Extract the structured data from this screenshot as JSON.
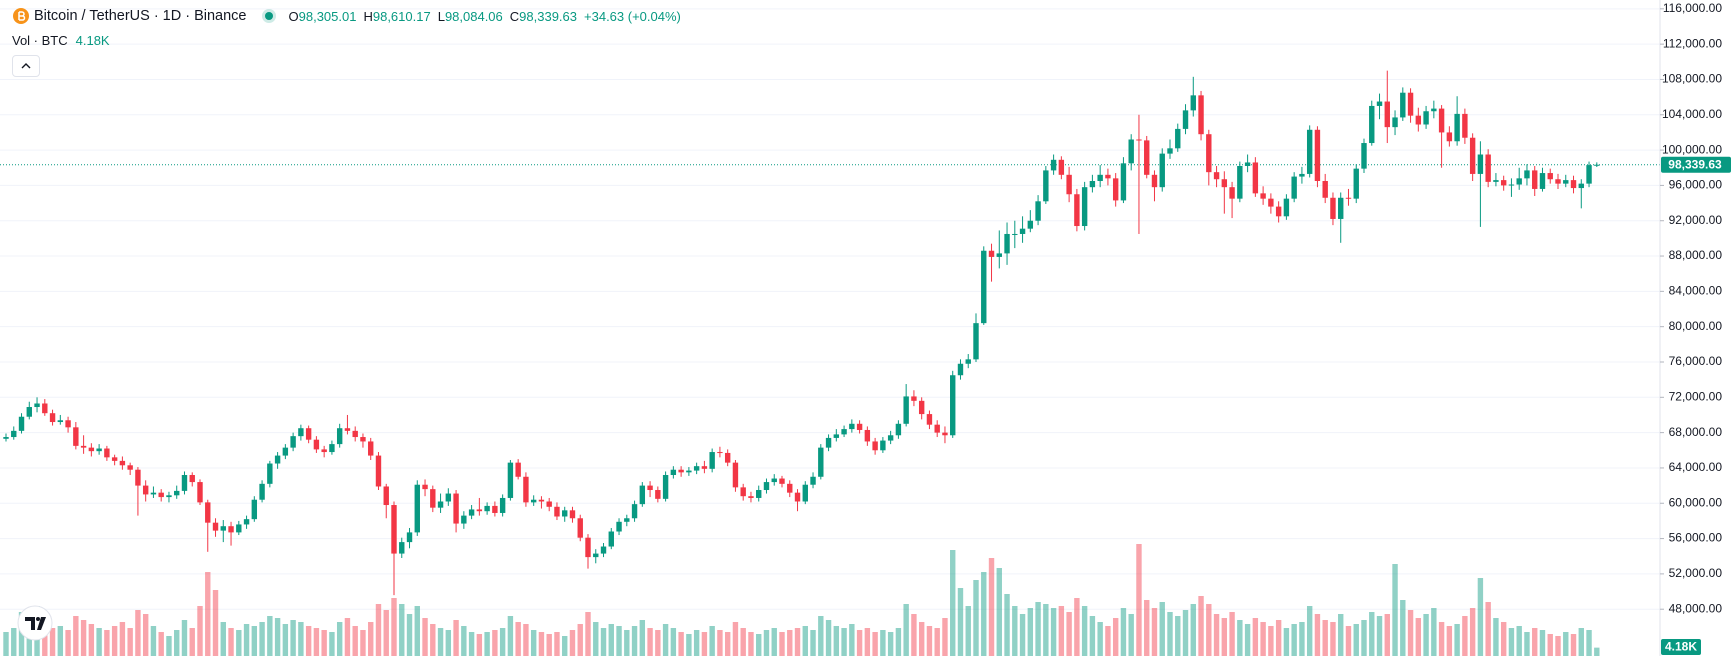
{
  "header": {
    "symbol": "Bitcoin / TetherUS · 1D · Binance",
    "ohlc": [
      {
        "label": "O",
        "value": "98,305.01"
      },
      {
        "label": "H",
        "value": "98,610.17"
      },
      {
        "label": "L",
        "value": "98,084.06"
      },
      {
        "label": "C",
        "value": "98,339.63"
      }
    ],
    "change": "+34.63 (+0.04%)",
    "volume_title": "Vol · BTC",
    "volume_value": "4.18K"
  },
  "chart_data": {
    "type": "candlestick",
    "ylim": [
      42700,
      117000
    ],
    "yticks": [
      {
        "value": 48000,
        "label": "48,000.00"
      },
      {
        "value": 52000,
        "label": "52,000.00"
      },
      {
        "value": 56000,
        "label": "56,000.00"
      },
      {
        "value": 60000,
        "label": "60,000.00"
      },
      {
        "value": 64000,
        "label": "64,000.00"
      },
      {
        "value": 68000,
        "label": "68,000.00"
      },
      {
        "value": 72000,
        "label": "72,000.00"
      },
      {
        "value": 76000,
        "label": "76,000.00"
      },
      {
        "value": 80000,
        "label": "80,000.00"
      },
      {
        "value": 84000,
        "label": "84,000.00"
      },
      {
        "value": 88000,
        "label": "88,000.00"
      },
      {
        "value": 92000,
        "label": "92,000.00"
      },
      {
        "value": 96000,
        "label": "96,000.00"
      },
      {
        "value": 100000,
        "label": "100,000.00"
      },
      {
        "value": 104000,
        "label": "104,000.00"
      },
      {
        "value": 108000,
        "label": "108,000.00"
      },
      {
        "value": 112000,
        "label": "112,000.00"
      },
      {
        "value": 116000,
        "label": "116,000.00"
      }
    ],
    "grid": true,
    "up_color": "#089981",
    "down_color": "#f23645",
    "series": {
      "open": [
        67300,
        67500,
        68200,
        69800,
        70900,
        71300,
        70200,
        69200,
        69400,
        68600,
        66500,
        66300,
        65900,
        66200,
        65200,
        64800,
        64300,
        63800,
        62000,
        61000,
        61200,
        60700,
        60900,
        61400,
        63200,
        62400,
        60100,
        57800,
        56900,
        57400,
        56700,
        57600,
        58200,
        60400,
        62200,
        64500,
        65400,
        66300,
        67600,
        68500,
        67200,
        66100,
        65800,
        66700,
        68500,
        68200,
        67500,
        67000,
        65400,
        61900,
        59800,
        54300,
        55600,
        56700,
        62100,
        61600,
        59500,
        60200,
        61100,
        57700,
        58600,
        59300,
        59100,
        59700,
        58900,
        60600,
        64600,
        63000,
        60100,
        60400,
        60200,
        59600,
        58500,
        59200,
        58300,
        56100,
        53900,
        54300,
        55100,
        56800,
        57900,
        58300,
        59900,
        62000,
        61500,
        60500,
        63200,
        63800,
        63500,
        63700,
        64200,
        63900,
        65800,
        65700,
        64600,
        61800,
        60800,
        60600,
        61500,
        62400,
        62800,
        62200,
        61200,
        60200,
        62100,
        63000,
        66300,
        67400,
        67800,
        68400,
        69000,
        68300,
        67000,
        66000,
        67100,
        67700,
        69000,
        72100,
        71600,
        70100,
        68900,
        68000,
        67700,
        74500,
        75800,
        76300,
        80400,
        88600,
        87900,
        88300,
        90500,
        90500,
        91100,
        92000,
        94200,
        97700,
        98900,
        97200,
        95000,
        91400,
        95800,
        96500,
        97200,
        96800,
        94300,
        98500,
        101200,
        101100,
        97200,
        95800,
        99600,
        100200,
        102400,
        104500,
        106200,
        101800,
        97500,
        96700,
        95800,
        94500,
        98200,
        98600,
        95100,
        94500,
        93600,
        92500,
        94500,
        97000,
        97300,
        102300,
        96500,
        94600,
        92200,
        94600,
        94500,
        97900,
        100800,
        105000,
        105500,
        102600,
        103700,
        106500,
        103900,
        102900,
        104400,
        104700,
        102000,
        101000,
        104100,
        101400,
        97300,
        99500,
        96400,
        96600,
        96000,
        96100,
        96800,
        97700,
        95600,
        97400,
        96700,
        96200,
        96600,
        95700,
        96200,
        98305.01
      ],
      "high": [
        67900,
        68700,
        70200,
        71500,
        72000,
        71800,
        70600,
        70000,
        69800,
        69200,
        67700,
        66800,
        66700,
        66500,
        65500,
        65300,
        64600,
        64100,
        62600,
        61900,
        61600,
        61300,
        62000,
        63600,
        63500,
        62700,
        60400,
        58300,
        58100,
        57900,
        58000,
        58600,
        60800,
        62600,
        64800,
        65800,
        66700,
        68000,
        68900,
        68800,
        67600,
        66500,
        67100,
        69000,
        70000,
        68700,
        67900,
        67400,
        65800,
        62200,
        60200,
        56100,
        57200,
        62600,
        62700,
        62000,
        61100,
        61700,
        61500,
        59100,
        59800,
        60600,
        60100,
        60200,
        61000,
        64900,
        65000,
        63500,
        60900,
        60800,
        60600,
        60100,
        59600,
        59600,
        58700,
        56500,
        54800,
        55500,
        57200,
        58300,
        58700,
        60300,
        62400,
        62500,
        61900,
        63600,
        64200,
        64200,
        64100,
        64600,
        64800,
        66200,
        66400,
        66100,
        64900,
        62200,
        61300,
        62000,
        62800,
        63300,
        63100,
        62600,
        61600,
        62500,
        63500,
        66700,
        67800,
        68400,
        68800,
        69500,
        69400,
        68700,
        67400,
        67500,
        68200,
        69400,
        73500,
        72800,
        72000,
        70500,
        69400,
        68700,
        75000,
        76300,
        76900,
        81500,
        89100,
        89400,
        90900,
        91800,
        92000,
        92500,
        93200,
        94900,
        98200,
        99500,
        99300,
        98100,
        95600,
        96400,
        97200,
        98300,
        97900,
        97400,
        99200,
        101800,
        104000,
        101600,
        97700,
        100200,
        101200,
        103000,
        105200,
        108300,
        106700,
        102300,
        98200,
        97600,
        96400,
        98700,
        99500,
        99200,
        95900,
        95100,
        94200,
        95000,
        97500,
        98100,
        102800,
        102700,
        97300,
        95200,
        95200,
        95600,
        98400,
        101300,
        105600,
        106400,
        109000,
        104500,
        107100,
        107000,
        104800,
        105000,
        105600,
        105100,
        102700,
        106100,
        104700,
        101900,
        101000,
        100100,
        97400,
        97100,
        96800,
        98000,
        98400,
        98200,
        98000,
        97900,
        97300,
        97200,
        97100,
        96700,
        98700,
        98610.17
      ],
      "low": [
        67000,
        67200,
        67900,
        69500,
        70300,
        69900,
        68800,
        68900,
        68000,
        66100,
        65600,
        65300,
        65500,
        64800,
        64300,
        63800,
        63200,
        58600,
        60200,
        60600,
        60200,
        60100,
        60500,
        61000,
        61900,
        59800,
        54500,
        56200,
        55600,
        55200,
        56400,
        57100,
        57900,
        60100,
        61800,
        63900,
        65000,
        65900,
        67100,
        66800,
        65700,
        65200,
        65500,
        66300,
        67800,
        67000,
        66300,
        64900,
        61500,
        58300,
        49600,
        53800,
        54900,
        56300,
        60800,
        59000,
        58900,
        59700,
        56700,
        57100,
        58200,
        58600,
        58700,
        58500,
        58500,
        60300,
        62700,
        59600,
        59700,
        59400,
        59100,
        58100,
        57900,
        57800,
        55700,
        52600,
        53200,
        53900,
        54800,
        56400,
        57400,
        57900,
        59600,
        60700,
        60100,
        60200,
        62800,
        63000,
        63100,
        63300,
        63400,
        63500,
        65200,
        64200,
        61300,
        60300,
        60100,
        60200,
        61100,
        62000,
        61800,
        60700,
        59100,
        59900,
        61700,
        62700,
        65900,
        67000,
        67500,
        68000,
        67900,
        66500,
        65500,
        65700,
        66700,
        67300,
        68700,
        71000,
        69500,
        68400,
        67500,
        66800,
        67400,
        74000,
        75300,
        76000,
        80200,
        85100,
        86600,
        87000,
        88900,
        89500,
        90700,
        91500,
        93900,
        97200,
        96700,
        94100,
        90800,
        90900,
        95200,
        95800,
        96000,
        93600,
        94000,
        97700,
        90500,
        96800,
        94200,
        95300,
        99000,
        99800,
        101800,
        103800,
        101100,
        96000,
        95800,
        92800,
        92300,
        94100,
        97500,
        94700,
        93800,
        92800,
        91800,
        92100,
        94100,
        96200,
        96900,
        95800,
        94000,
        91500,
        89500,
        93700,
        94000,
        97400,
        100500,
        103500,
        100800,
        101700,
        103300,
        103100,
        102100,
        102400,
        103600,
        98000,
        100400,
        100500,
        100700,
        96500,
        91300,
        95800,
        95900,
        95400,
        94700,
        95500,
        96000,
        94800,
        95300,
        96200,
        95600,
        95800,
        95100,
        93400,
        95800,
        98084.06
      ],
      "close": [
        67500,
        68200,
        69800,
        70900,
        71300,
        70200,
        69200,
        69400,
        68600,
        66500,
        66300,
        65900,
        66200,
        65200,
        64800,
        64300,
        63800,
        62000,
        61000,
        61200,
        60700,
        60900,
        61400,
        63200,
        62400,
        60100,
        57800,
        56900,
        57400,
        56700,
        57600,
        58200,
        60400,
        62200,
        64500,
        65400,
        66300,
        67600,
        68500,
        67200,
        66100,
        65800,
        66700,
        68500,
        68200,
        67500,
        67000,
        65400,
        61900,
        59800,
        54300,
        55600,
        56700,
        62100,
        61600,
        59500,
        60200,
        61100,
        57700,
        58600,
        59300,
        59100,
        59700,
        58900,
        60600,
        64600,
        63000,
        60100,
        60400,
        60200,
        59600,
        58500,
        59200,
        58300,
        56100,
        53900,
        54300,
        55100,
        56800,
        57900,
        58300,
        59900,
        62000,
        61500,
        60500,
        63200,
        63800,
        63500,
        63700,
        64200,
        63900,
        65800,
        65700,
        64600,
        61800,
        60800,
        60600,
        61500,
        62400,
        62800,
        62200,
        61200,
        60200,
        62100,
        63000,
        66300,
        67400,
        67800,
        68400,
        69000,
        68300,
        67000,
        66000,
        67100,
        67700,
        69000,
        72100,
        71600,
        70100,
        68900,
        68000,
        67700,
        74500,
        75800,
        76300,
        80400,
        88600,
        87900,
        88300,
        90500,
        90500,
        91100,
        92000,
        94200,
        97700,
        98900,
        97200,
        95000,
        91400,
        95800,
        96500,
        97200,
        96800,
        94300,
        98500,
        101200,
        101100,
        97200,
        95800,
        99600,
        100200,
        102400,
        104500,
        106200,
        101800,
        97500,
        96700,
        95800,
        94500,
        98200,
        98600,
        95100,
        94500,
        93600,
        92500,
        94500,
        97000,
        97300,
        102300,
        96500,
        94600,
        92200,
        94600,
        94500,
        97900,
        100800,
        105000,
        105500,
        102600,
        103700,
        106500,
        103900,
        102900,
        104400,
        104700,
        102000,
        101000,
        104100,
        101400,
        97300,
        99500,
        96400,
        96600,
        96000,
        96100,
        96800,
        97700,
        95600,
        97400,
        96700,
        96200,
        96600,
        95700,
        96200,
        98300,
        98339.63
      ]
    },
    "volume": {
      "values": [
        12000,
        14000,
        22000,
        18000,
        25000,
        19000,
        14000,
        15000,
        13000,
        20000,
        18000,
        16000,
        14000,
        13000,
        15000,
        17000,
        14000,
        23000,
        21000,
        15000,
        12000,
        10000,
        13000,
        18000,
        14000,
        25000,
        42000,
        33000,
        17000,
        14000,
        13000,
        16000,
        15000,
        17000,
        20000,
        19000,
        16000,
        18000,
        17000,
        15000,
        14000,
        13000,
        12000,
        17000,
        19000,
        15000,
        13000,
        17000,
        26000,
        23000,
        29000,
        26000,
        21000,
        25000,
        19000,
        16000,
        14000,
        13000,
        18000,
        15000,
        12000,
        11000,
        12000,
        13000,
        14000,
        20000,
        17000,
        16000,
        13000,
        12000,
        11000,
        12000,
        10000,
        13000,
        16000,
        22000,
        17000,
        14000,
        16000,
        15000,
        13000,
        15000,
        18000,
        14000,
        13000,
        16000,
        14000,
        12000,
        11000,
        13000,
        12000,
        15000,
        13000,
        12000,
        17000,
        14000,
        12000,
        11000,
        13000,
        14000,
        12000,
        13000,
        14000,
        15000,
        13000,
        20000,
        18000,
        15000,
        14000,
        16000,
        13000,
        14000,
        12000,
        13000,
        12000,
        14000,
        26000,
        21000,
        17000,
        15000,
        14000,
        19000,
        53000,
        34000,
        25000,
        38000,
        42000,
        49000,
        44000,
        31000,
        25000,
        21000,
        24000,
        27000,
        26000,
        24000,
        25000,
        22000,
        29000,
        25000,
        20000,
        17000,
        15000,
        19000,
        24000,
        21000,
        56000,
        28000,
        24000,
        27000,
        22000,
        20000,
        23000,
        26000,
        30000,
        26000,
        21000,
        19000,
        22000,
        18000,
        16000,
        19000,
        17000,
        15000,
        18000,
        14000,
        16000,
        17000,
        25000,
        21000,
        18000,
        17000,
        21000,
        15000,
        16000,
        18000,
        22000,
        20000,
        21000,
        46000,
        28000,
        23000,
        19000,
        21000,
        24000,
        17000,
        15000,
        16000,
        20000,
        24000,
        39000,
        27000,
        19000,
        17000,
        14000,
        15000,
        12000,
        14000,
        13000,
        11000,
        10000,
        12000,
        11000,
        14000,
        13000,
        4180
      ]
    },
    "last_price": {
      "value": 98339.63,
      "label": "98,339.63"
    },
    "last_volume_label": "4.18K"
  }
}
